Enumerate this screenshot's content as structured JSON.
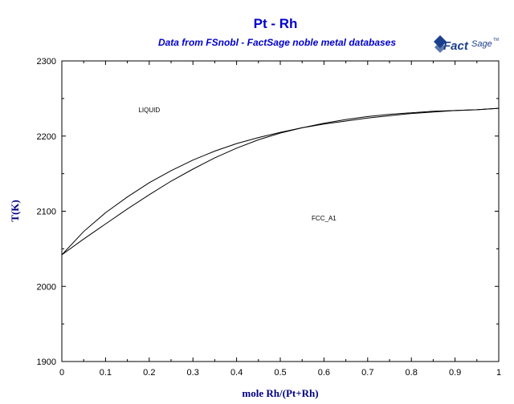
{
  "colors": {
    "title": "#0000cc",
    "subtitle": "#0000cc",
    "axis_title": "#000080",
    "logo": "#1a3f8c",
    "curve": "#000000"
  },
  "logo": {
    "icon": "factsage-logo-icon",
    "text_main": "Fact",
    "text_sage": "Sage",
    "text_tm": "TM"
  },
  "chart_data": {
    "type": "line",
    "title": "Pt - Rh",
    "subtitle": "Data from FSnobl - FactSage noble metal databases",
    "xlabel": "mole Rh/(Pt+Rh)",
    "ylabel": "T(K)",
    "xlim": [
      0,
      1
    ],
    "ylim": [
      1900,
      2300
    ],
    "xticks": [
      "0",
      "0.1",
      "0.2",
      "0.3",
      "0.4",
      "0.5",
      "0.6",
      "0.7",
      "0.8",
      "0.9",
      "1"
    ],
    "yticks": [
      "1900",
      "2000",
      "2100",
      "2200",
      "2300"
    ],
    "grid": false,
    "region_labels": [
      {
        "text": "LIQUID",
        "x": 0.2,
        "y": 2232
      },
      {
        "text": "FCC_A1",
        "x": 0.6,
        "y": 2088
      }
    ],
    "series": [
      {
        "name": "liquidus",
        "x": [
          0,
          0.05,
          0.1,
          0.15,
          0.2,
          0.25,
          0.3,
          0.35,
          0.4,
          0.45,
          0.5,
          0.55,
          0.6,
          0.65,
          0.7,
          0.75,
          0.8,
          0.85,
          0.9,
          0.95,
          1
        ],
        "y": [
          2042,
          2073,
          2098,
          2119,
          2138,
          2154,
          2168,
          2180,
          2190,
          2198,
          2205,
          2211,
          2216,
          2220,
          2224,
          2227,
          2230,
          2232,
          2234,
          2235,
          2237
        ]
      },
      {
        "name": "solidus",
        "x": [
          0,
          0.05,
          0.1,
          0.15,
          0.2,
          0.25,
          0.3,
          0.35,
          0.4,
          0.45,
          0.5,
          0.55,
          0.6,
          0.65,
          0.7,
          0.75,
          0.8,
          0.85,
          0.9,
          0.95,
          1
        ],
        "y": [
          2042,
          2063,
          2083,
          2103,
          2122,
          2140,
          2156,
          2171,
          2184,
          2195,
          2204,
          2211,
          2217,
          2222,
          2226,
          2229,
          2231,
          2233,
          2234,
          2235,
          2237
        ]
      }
    ]
  }
}
